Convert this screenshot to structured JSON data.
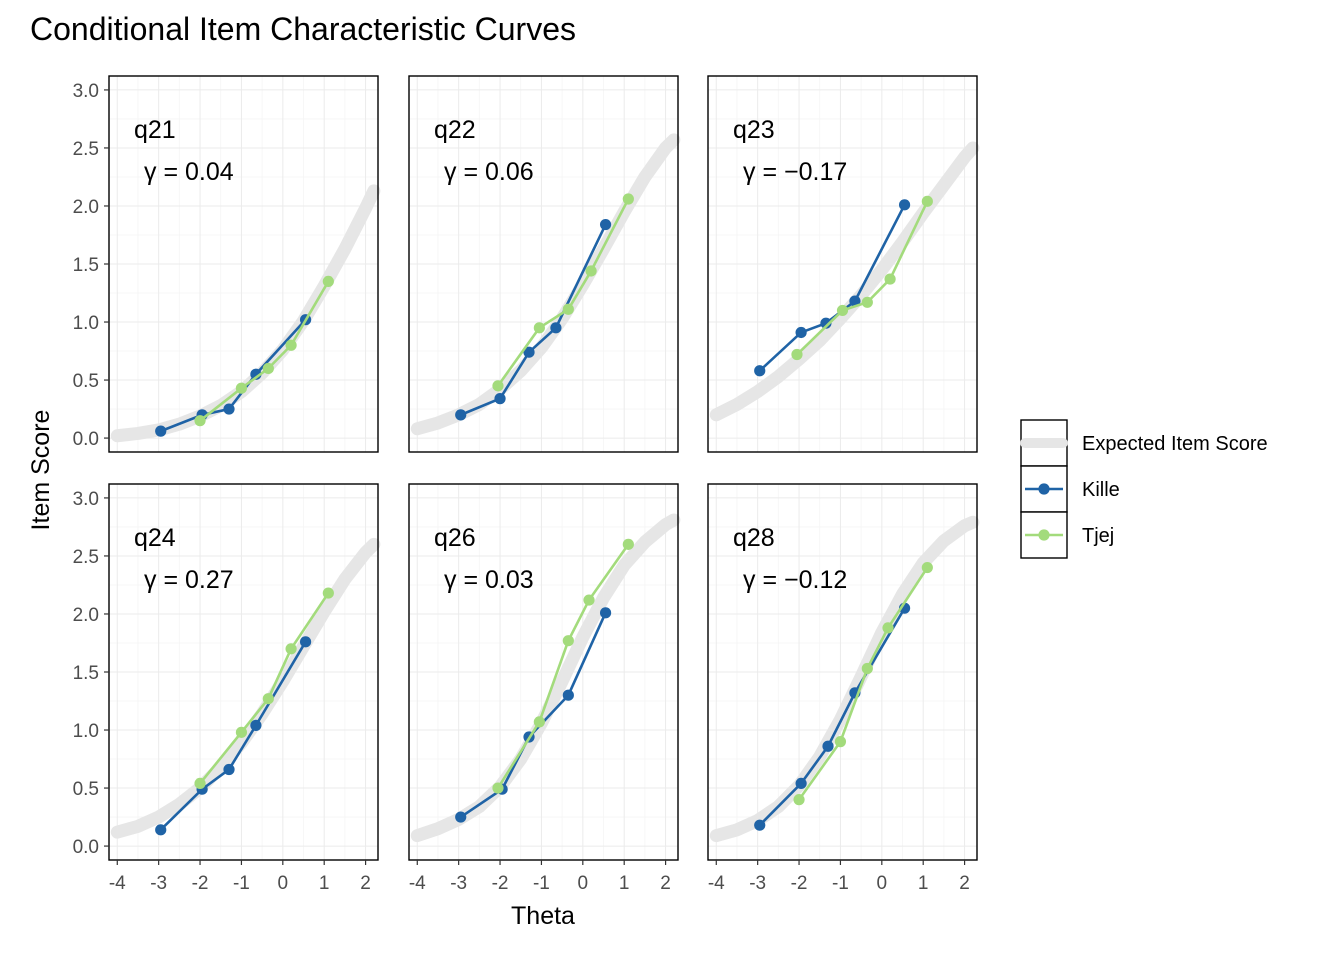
{
  "chart_data": {
    "type": "line",
    "title": "Conditional Item Characteristic Curves",
    "xlabel": "Theta",
    "ylabel": "Item Score",
    "xlim": [
      -4.2,
      2.3
    ],
    "ylim": [
      -0.12,
      3.12
    ],
    "x_ticks": [
      "-4",
      "-3",
      "-2",
      "-1",
      "0",
      "1",
      "2"
    ],
    "y_ticks": [
      "0.0",
      "0.5",
      "1.0",
      "1.5",
      "2.0",
      "2.5",
      "3.0"
    ],
    "grid": true,
    "legend_position": "right",
    "colors": {
      "expected": "#e6e6e6",
      "Kille": "#1f63a6",
      "Tjej": "#a3db7c"
    },
    "legend": [
      {
        "key": "expected",
        "label": "Expected Item Score"
      },
      {
        "key": "Kille",
        "label": "Kille"
      },
      {
        "key": "Tjej",
        "label": "Tjej"
      }
    ],
    "panels": [
      {
        "item": "q21",
        "gamma": "γ = 0.04",
        "expected": {
          "x": [
            -4,
            -3.5,
            -3,
            -2.5,
            -2,
            -1.5,
            -1,
            -0.5,
            0,
            0.5,
            1,
            1.5,
            2,
            2.2
          ],
          "y": [
            0.02,
            0.04,
            0.07,
            0.12,
            0.19,
            0.28,
            0.4,
            0.56,
            0.76,
            1.01,
            1.31,
            1.63,
            1.98,
            2.13
          ]
        },
        "series": [
          {
            "name": "Kille",
            "x": [
              -2.95,
              -1.95,
              -1.3,
              -0.65,
              0.55
            ],
            "y": [
              0.06,
              0.2,
              0.25,
              0.55,
              1.02
            ]
          },
          {
            "name": "Tjej",
            "x": [
              -2.0,
              -1.0,
              -0.35,
              0.2,
              1.1
            ],
            "y": [
              0.15,
              0.43,
              0.6,
              0.8,
              1.35
            ]
          }
        ]
      },
      {
        "item": "q22",
        "gamma": "γ = 0.06",
        "expected": {
          "x": [
            -4,
            -3.5,
            -3,
            -2.5,
            -2,
            -1.5,
            -1,
            -0.5,
            0,
            0.5,
            1,
            1.5,
            2,
            2.2
          ],
          "y": [
            0.08,
            0.13,
            0.2,
            0.29,
            0.42,
            0.58,
            0.78,
            1.03,
            1.32,
            1.63,
            1.95,
            2.25,
            2.5,
            2.57
          ]
        },
        "series": [
          {
            "name": "Kille",
            "x": [
              -2.95,
              -2.0,
              -1.3,
              -0.65,
              0.55
            ],
            "y": [
              0.2,
              0.34,
              0.74,
              0.95,
              1.84
            ]
          },
          {
            "name": "Tjej",
            "x": [
              -2.05,
              -1.05,
              -0.35,
              0.2,
              1.1
            ],
            "y": [
              0.45,
              0.95,
              1.11,
              1.44,
              2.06
            ]
          }
        ]
      },
      {
        "item": "q23",
        "gamma": "γ = −0.17",
        "expected": {
          "x": [
            -4,
            -3.5,
            -3,
            -2.5,
            -2,
            -1.5,
            -1,
            -0.5,
            0,
            0.5,
            1,
            1.5,
            2,
            2.2
          ],
          "y": [
            0.2,
            0.29,
            0.4,
            0.53,
            0.68,
            0.84,
            1.03,
            1.23,
            1.45,
            1.69,
            1.94,
            2.18,
            2.42,
            2.5
          ]
        },
        "series": [
          {
            "name": "Kille",
            "x": [
              -2.95,
              -1.95,
              -1.35,
              -0.65,
              0.55
            ],
            "y": [
              0.58,
              0.91,
              0.99,
              1.18,
              2.01
            ]
          },
          {
            "name": "Tjej",
            "x": [
              -2.05,
              -0.95,
              -0.35,
              0.2,
              1.1
            ],
            "y": [
              0.72,
              1.1,
              1.17,
              1.37,
              2.04
            ]
          }
        ]
      },
      {
        "item": "q24",
        "gamma": "γ = 0.27",
        "expected": {
          "x": [
            -4,
            -3.5,
            -3,
            -2.5,
            -2,
            -1.5,
            -1,
            -0.5,
            0,
            0.5,
            1,
            1.5,
            2,
            2.2
          ],
          "y": [
            0.12,
            0.17,
            0.25,
            0.36,
            0.5,
            0.68,
            0.89,
            1.14,
            1.42,
            1.72,
            2.02,
            2.3,
            2.53,
            2.6
          ]
        },
        "series": [
          {
            "name": "Kille",
            "x": [
              -2.95,
              -1.95,
              -1.3,
              -0.65,
              0.55
            ],
            "y": [
              0.14,
              0.49,
              0.66,
              1.04,
              1.76
            ]
          },
          {
            "name": "Tjej",
            "x": [
              -2.0,
              -1.0,
              -0.35,
              0.2,
              1.1
            ],
            "y": [
              0.54,
              0.98,
              1.27,
              1.7,
              2.18
            ]
          }
        ]
      },
      {
        "item": "q26",
        "gamma": "γ = 0.03",
        "expected": {
          "x": [
            -4,
            -3.5,
            -3,
            -2.5,
            -2,
            -1.5,
            -1,
            -0.5,
            0,
            0.5,
            1,
            1.5,
            2,
            2.2
          ],
          "y": [
            0.09,
            0.15,
            0.23,
            0.34,
            0.51,
            0.75,
            1.06,
            1.42,
            1.8,
            2.14,
            2.42,
            2.62,
            2.77,
            2.81
          ]
        },
        "series": [
          {
            "name": "Kille",
            "x": [
              -2.95,
              -1.95,
              -1.3,
              -0.35,
              0.55
            ],
            "y": [
              0.25,
              0.49,
              0.94,
              1.3,
              2.01
            ]
          },
          {
            "name": "Tjej",
            "x": [
              -2.05,
              -1.05,
              -0.35,
              0.15,
              1.1
            ],
            "y": [
              0.5,
              1.07,
              1.77,
              2.12,
              2.6
            ]
          }
        ]
      },
      {
        "item": "q28",
        "gamma": "γ = −0.12",
        "expected": {
          "x": [
            -4,
            -3.5,
            -3,
            -2.5,
            -2,
            -1.5,
            -1,
            -0.5,
            0,
            0.5,
            1,
            1.5,
            2,
            2.2
          ],
          "y": [
            0.09,
            0.14,
            0.22,
            0.34,
            0.52,
            0.77,
            1.09,
            1.46,
            1.84,
            2.17,
            2.44,
            2.63,
            2.76,
            2.79
          ]
        },
        "series": [
          {
            "name": "Kille",
            "x": [
              -2.95,
              -1.95,
              -1.3,
              -0.65,
              0.55
            ],
            "y": [
              0.18,
              0.54,
              0.86,
              1.32,
              2.05
            ]
          },
          {
            "name": "Tjej",
            "x": [
              -2.0,
              -1.0,
              -0.35,
              0.15,
              1.1
            ],
            "y": [
              0.4,
              0.9,
              1.53,
              1.88,
              2.4
            ]
          }
        ]
      }
    ]
  }
}
